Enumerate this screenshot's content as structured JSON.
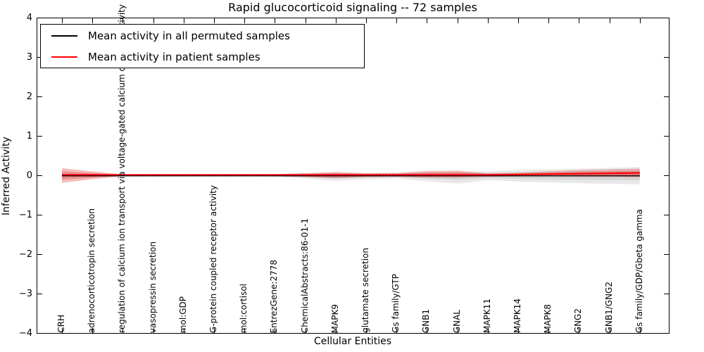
{
  "chart_data": {
    "type": "violin",
    "title": "Rapid glucocorticoid signaling -- 72 samples",
    "xlabel": "Cellular Entities",
    "ylabel": "Inferred Activity",
    "ylim": [
      -4,
      4
    ],
    "ytick_values": [
      4,
      3,
      2,
      1,
      0,
      -1,
      -2,
      -3,
      -4
    ],
    "ytick_labels": [
      "4",
      "3",
      "2",
      "1",
      "0",
      "−1",
      "−2",
      "−3",
      "−4"
    ],
    "grid": false,
    "legend": {
      "position": "upper left"
    },
    "categories": [
      "CRH",
      "adrenocorticotropin secretion",
      "regulation of calcium ion transport via voltage-gated calcium channel activity",
      "vasopressin secretion",
      "mol:GDP",
      "G-protein coupled receptor activity",
      "mol:cortisol",
      "EntrezGene:2778",
      "ChemicalAbstracts:86-01-1",
      "MAPK9",
      "glutamate secretion",
      "Gs family/GTP",
      "GNB1",
      "GNAL",
      "MAPK11",
      "MAPK14",
      "MAPK8",
      "GNG2",
      "GNB1/GNG2",
      "Gs family/GDP/Gbeta gamma"
    ],
    "series": [
      {
        "name": "Mean activity in all permuted samples",
        "color": "#000000",
        "fill": "#808080",
        "mean": [
          0,
          0,
          0,
          0,
          0,
          0,
          0,
          0,
          0,
          0,
          0,
          0,
          0,
          0,
          0,
          0,
          0,
          0,
          0,
          0
        ],
        "spread_top": [
          0.03,
          0.03,
          0.025,
          0.02,
          0.02,
          0.02,
          0.025,
          0.03,
          0.05,
          0.06,
          0.05,
          0.06,
          0.07,
          0.09,
          0.1,
          0.13,
          0.15,
          0.17,
          0.19,
          0.21
        ],
        "spread_bottom": [
          -0.04,
          -0.04,
          -0.03,
          -0.03,
          -0.03,
          -0.03,
          -0.03,
          -0.04,
          -0.08,
          -0.14,
          -0.1,
          -0.08,
          -0.15,
          -0.21,
          -0.12,
          -0.16,
          -0.18,
          -0.2,
          -0.215,
          -0.23
        ]
      },
      {
        "name": "Mean activity in patient samples",
        "color": "#ff0000",
        "fill": "#dd2222",
        "mean": [
          0.01,
          0.01,
          0.01,
          0.01,
          0.01,
          0.01,
          0.01,
          0.01,
          0.01,
          0.01,
          0.01,
          0.01,
          0.01,
          0.01,
          0.01,
          0.02,
          0.03,
          0.04,
          0.05,
          0.06
        ],
        "spread_top": [
          0.18,
          0.1,
          0.025,
          0.02,
          0.02,
          0.02,
          0.02,
          0.025,
          0.055,
          0.085,
          0.055,
          0.06,
          0.11,
          0.12,
          0.05,
          0.065,
          0.1,
          0.13,
          0.15,
          0.17
        ],
        "spread_bottom": [
          -0.19,
          -0.1,
          -0.025,
          -0.02,
          -0.02,
          -0.02,
          -0.02,
          -0.025,
          -0.045,
          -0.075,
          -0.045,
          -0.04,
          -0.06,
          -0.06,
          -0.035,
          -0.03,
          -0.03,
          -0.035,
          -0.04,
          -0.05
        ]
      }
    ],
    "center_reference": {
      "style": "dotted",
      "color": "#000000",
      "y": 0
    }
  }
}
